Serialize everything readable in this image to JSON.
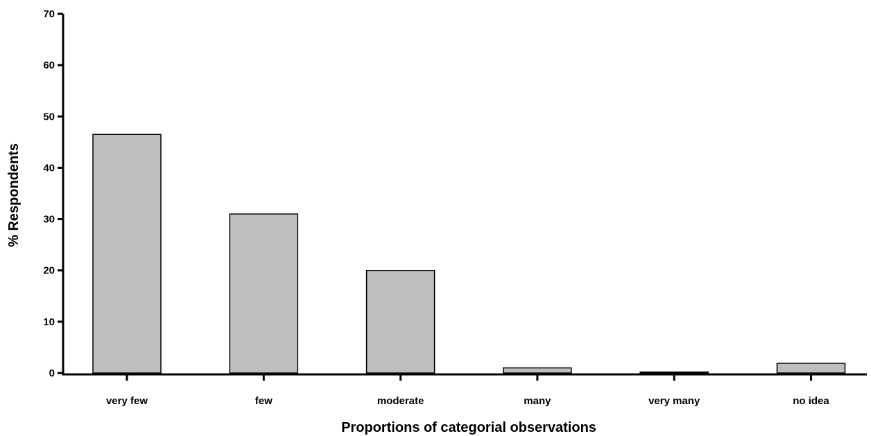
{
  "chart_data": {
    "type": "bar",
    "categories": [
      "very few",
      "few",
      "moderate",
      "many",
      "very many",
      "no idea"
    ],
    "values": [
      46.5,
      31,
      20,
      1,
      0.2,
      1.9
    ],
    "xlabel": "Proportions of categorial observations",
    "ylabel": "% Respondents",
    "ylim": [
      0,
      70
    ],
    "yticks": [
      0,
      10,
      20,
      30,
      40,
      50,
      60,
      70
    ],
    "grid": false,
    "legend": "none",
    "bar_color": "#bebebe",
    "bar_edge_color": "#000000"
  }
}
